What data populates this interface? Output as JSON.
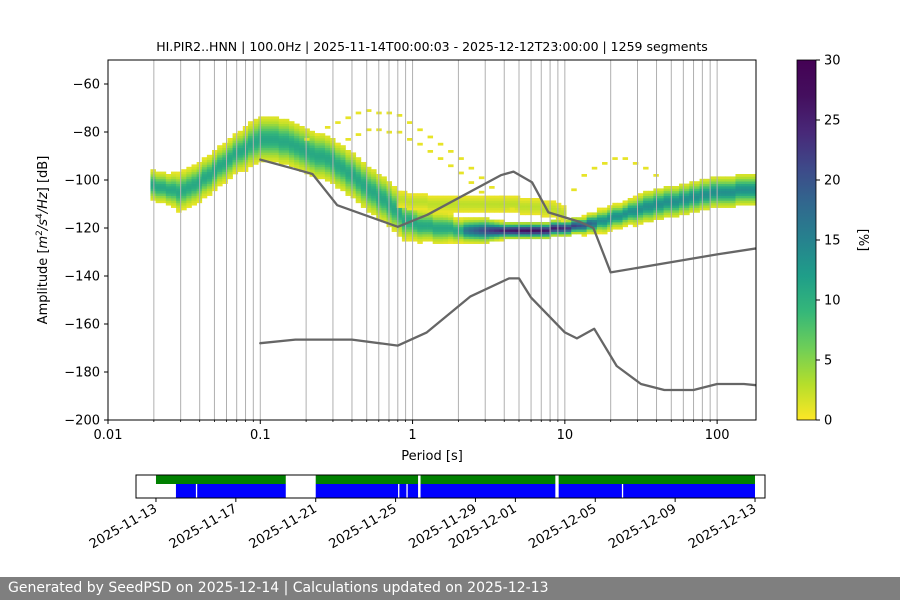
{
  "chart_data": [
    {
      "type": "heatmap",
      "title": "HI.PIR2..HNN | 100.0Hz | 2025-11-14T00:00:03 - 2025-12-12T23:00:00 | 1259 segments",
      "xlabel": "Period [s]",
      "ylabel": "Amplitude [m2/s4/Hz] [dB]",
      "xscale": "log",
      "xlim": [
        0.01,
        180
      ],
      "ylim": [
        -200,
        -50
      ],
      "x_ticks": [
        "0.01",
        "0.1",
        "1",
        "10",
        "100"
      ],
      "y_ticks": [
        "−60",
        "−80",
        "−100",
        "−120",
        "−140",
        "−160",
        "−180",
        "−200"
      ],
      "grid": "vertical",
      "colorbar": {
        "label": "[%]",
        "range": [
          0,
          30
        ],
        "ticks": [
          "0",
          "5",
          "10",
          "15",
          "20",
          "25",
          "30"
        ],
        "colormap": "viridis_r"
      },
      "psd_density": {
        "median_period": [
          0.02,
          0.025,
          0.03,
          0.04,
          0.05,
          0.07,
          0.1,
          0.13,
          0.17,
          0.22,
          0.3,
          0.4,
          0.5,
          0.7,
          0.9,
          1.2,
          1.6,
          2.0,
          3.0,
          4.0,
          5.0,
          7.0,
          10.0,
          13.0,
          18.0,
          25.0,
          35.0,
          50.0,
          70.0,
          100.0,
          180.0
        ],
        "median_db": [
          -102,
          -104,
          -105,
          -101,
          -96,
          -89,
          -83,
          -83,
          -86,
          -89,
          -92,
          -98,
          -103,
          -110,
          -117,
          -119,
          -120,
          -121,
          -121,
          -121,
          -121,
          -121,
          -120,
          -119,
          -117,
          -114,
          -111,
          -109,
          -107,
          -105,
          -104
        ],
        "width_db": [
          4,
          4,
          5,
          5,
          5,
          5,
          6,
          6,
          6,
          6,
          6,
          6,
          6,
          6,
          5,
          4,
          4,
          3,
          3,
          2,
          2,
          2,
          2,
          2,
          3,
          3,
          4,
          4,
          4,
          4,
          4
        ],
        "low_energy_branch": {
          "period": [
            0.8,
            1.0,
            1.5,
            2.0,
            3.0,
            4.0,
            6.0,
            8.0,
            10.0
          ],
          "db": [
            -108,
            -109,
            -110,
            -110,
            -110,
            -110,
            -111,
            -112,
            -114
          ]
        },
        "outlier_arcs": [
          {
            "period": [
              0.2,
              0.3,
              0.5,
              0.8,
              1.2,
              2.0,
              3.0,
              4.0,
              5.0
            ],
            "db": [
              -83,
              -77,
              -71,
              -73,
              -80,
              -90,
              -100,
              -108,
              -115
            ]
          },
          {
            "period": [
              0.3,
              0.5,
              0.8,
              1.2,
              2.0,
              3.0
            ],
            "db": [
              -86,
              -79,
              -80,
              -86,
              -96,
              -106
            ]
          },
          {
            "period": [
              10.0,
              14.0,
              20.0,
              25.0,
              35.0,
              45.0
            ],
            "db": [
              -108,
              -97,
              -91,
              -91,
              -95,
              -101
            ]
          }
        ]
      },
      "series": [
        {
          "name": "",
          "color": "#666666",
          "x": [
            0.1,
            0.17,
            0.22,
            0.32,
            0.8,
            1.25,
            3.8,
            4.6,
            6.1,
            7.8,
            12.6,
            15.4,
            20,
            100,
            180
          ],
          "y": [
            -91.5,
            -95.5,
            -97.5,
            -110.5,
            -119.5,
            -114.5,
            -98,
            -96.5,
            -101,
            -113.5,
            -117.5,
            -120,
            -138.5,
            -131,
            -128.5
          ]
        },
        {
          "name": "",
          "color": "#666666",
          "x": [
            0.1,
            0.17,
            0.4,
            0.8,
            1.24,
            2.4,
            4.3,
            5.0,
            6.0,
            10.0,
            12.0,
            15.6,
            21.9,
            31.6,
            45.0,
            70.0,
            100.0,
            150.0,
            180.0
          ],
          "y": [
            -168,
            -166.5,
            -166.5,
            -169,
            -163.5,
            -148.5,
            -141,
            -141,
            -149,
            -163.5,
            -166,
            -162,
            -177.5,
            -185,
            -187.5,
            -187.5,
            -185,
            -185,
            -185.5
          ]
        }
      ]
    },
    {
      "type": "timeline",
      "x_ticks": [
        "2025-11-13",
        "2025-11-17",
        "2025-11-21",
        "2025-11-25",
        "2025-11-29",
        "2025-12-01",
        "2025-12-05",
        "2025-12-09",
        "2025-12-13"
      ],
      "xlim": [
        "2025-11-12",
        "2025-12-13T12:00"
      ],
      "colors": {
        "upper": "#008000",
        "lower": "#0000ff"
      },
      "upper_spans": [
        [
          "2025-11-13T00:00",
          "2025-11-19T12:00"
        ],
        [
          "2025-11-21T00:00",
          "2025-11-26T03:00"
        ],
        [
          "2025-11-26T06:00",
          "2025-12-03T00:00"
        ],
        [
          "2025-12-03T04:00",
          "2025-12-13T00:00"
        ]
      ],
      "lower_spans": [
        [
          "2025-11-14T00:00",
          "2025-11-19T12:00"
        ],
        [
          "2025-11-21T00:00",
          "2025-11-26T03:00"
        ],
        [
          "2025-11-26T06:00",
          "2025-12-03T00:00"
        ],
        [
          "2025-12-03T04:00",
          "2025-12-13T00:00"
        ]
      ],
      "lower_gaps": [
        "2025-11-15T00:00",
        "2025-11-25T03:00",
        "2025-11-25T13:00",
        "2025-12-06T08:00"
      ]
    }
  ],
  "footer": {
    "text": "Generated by SeedPSD on 2025-12-14 | Calculations updated on 2025-12-13"
  }
}
